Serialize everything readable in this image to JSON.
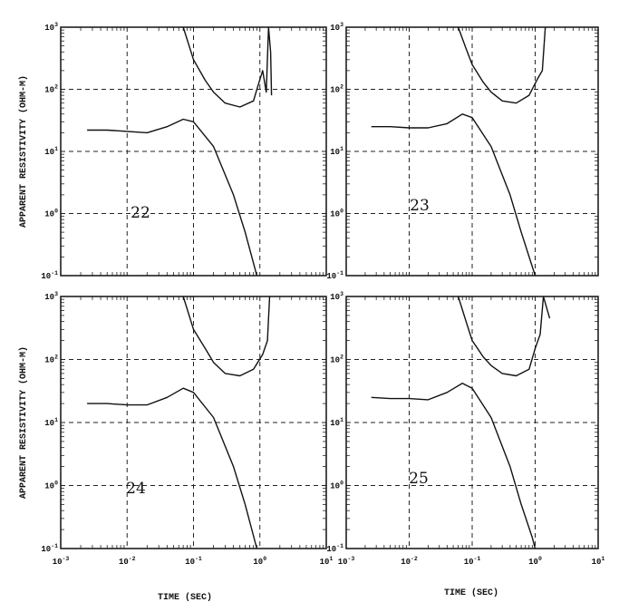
{
  "figure": {
    "ylabel": "APPARENT RESISTIVITY (OHM-M)",
    "xlabel": "TIME (SEC)"
  },
  "chart_data": [
    {
      "type": "line",
      "panel_label": "22",
      "x_scale": "log",
      "y_scale": "log",
      "xlim": [
        0.001,
        10
      ],
      "ylim": [
        0.1,
        1000
      ],
      "x_ticks": [
        {
          "base": "10",
          "exp": "-3"
        },
        {
          "base": "10",
          "exp": "-2"
        },
        {
          "base": "10",
          "exp": "-1"
        },
        {
          "base": "10",
          "exp": "0"
        },
        {
          "base": "10",
          "exp": "1"
        }
      ],
      "y_ticks": [
        {
          "base": "10",
          "exp": "-1"
        },
        {
          "base": "10",
          "exp": "0"
        },
        {
          "base": "10",
          "exp": "1"
        },
        {
          "base": "10",
          "exp": "2"
        },
        {
          "base": "10",
          "exp": "3"
        }
      ],
      "series": [
        {
          "name": "lower curve",
          "x": [
            0.0025,
            0.005,
            0.01,
            0.02,
            0.04,
            0.07,
            0.1,
            0.2,
            0.4,
            0.6,
            0.9
          ],
          "y": [
            22,
            22,
            21,
            20,
            25,
            33,
            30,
            12,
            2,
            0.5,
            0.1
          ]
        },
        {
          "name": "upper curve",
          "x": [
            0.07,
            0.1,
            0.15,
            0.2,
            0.3,
            0.5,
            0.8,
            0.95,
            1.1,
            1.25,
            1.35,
            1.45,
            1.5
          ],
          "y": [
            1000,
            300,
            140,
            90,
            60,
            52,
            65,
            120,
            200,
            90,
            1000,
            400,
            80
          ]
        }
      ]
    },
    {
      "type": "line",
      "panel_label": "23",
      "x_scale": "log",
      "y_scale": "log",
      "xlim": [
        0.001,
        10
      ],
      "ylim": [
        0.1,
        1000
      ],
      "x_ticks": [
        {
          "base": "10",
          "exp": "-3"
        },
        {
          "base": "10",
          "exp": "-2"
        },
        {
          "base": "10",
          "exp": "-1"
        },
        {
          "base": "10",
          "exp": "0"
        },
        {
          "base": "10",
          "exp": "1"
        }
      ],
      "y_ticks": [
        {
          "base": "10",
          "exp": "-1"
        },
        {
          "base": "10",
          "exp": "0"
        },
        {
          "base": "10",
          "exp": "1"
        },
        {
          "base": "10",
          "exp": "2"
        },
        {
          "base": "10",
          "exp": "3"
        }
      ],
      "series": [
        {
          "name": "lower curve",
          "x": [
            0.0025,
            0.005,
            0.01,
            0.02,
            0.04,
            0.07,
            0.1,
            0.2,
            0.4,
            0.6,
            1.0
          ],
          "y": [
            25,
            25,
            24,
            24,
            28,
            40,
            35,
            12,
            2,
            0.5,
            0.1
          ]
        },
        {
          "name": "upper curve",
          "x": [
            0.06,
            0.08,
            0.1,
            0.15,
            0.2,
            0.3,
            0.5,
            0.8,
            1.1,
            1.3,
            1.45
          ],
          "y": [
            1000,
            450,
            250,
            130,
            90,
            65,
            60,
            80,
            150,
            200,
            1000
          ]
        }
      ]
    },
    {
      "type": "line",
      "panel_label": "24",
      "x_scale": "log",
      "y_scale": "log",
      "xlim": [
        0.001,
        10
      ],
      "ylim": [
        0.1,
        1000
      ],
      "x_ticks": [
        {
          "base": "10",
          "exp": "-3"
        },
        {
          "base": "10",
          "exp": "-2"
        },
        {
          "base": "10",
          "exp": "-1"
        },
        {
          "base": "10",
          "exp": "0"
        },
        {
          "base": "10",
          "exp": "1"
        }
      ],
      "y_ticks": [
        {
          "base": "10",
          "exp": "-1"
        },
        {
          "base": "10",
          "exp": "0"
        },
        {
          "base": "10",
          "exp": "1"
        },
        {
          "base": "10",
          "exp": "2"
        },
        {
          "base": "10",
          "exp": "3"
        }
      ],
      "series": [
        {
          "name": "lower curve",
          "x": [
            0.0025,
            0.005,
            0.01,
            0.02,
            0.04,
            0.07,
            0.1,
            0.2,
            0.4,
            0.6,
            0.9
          ],
          "y": [
            20,
            20,
            19,
            19,
            25,
            35,
            30,
            12,
            2,
            0.5,
            0.1
          ]
        },
        {
          "name": "upper curve",
          "x": [
            0.07,
            0.1,
            0.15,
            0.2,
            0.3,
            0.5,
            0.8,
            1.1,
            1.3,
            1.4
          ],
          "y": [
            1000,
            300,
            150,
            90,
            60,
            55,
            70,
            120,
            200,
            1000
          ]
        }
      ]
    },
    {
      "type": "line",
      "panel_label": "25",
      "x_scale": "log",
      "y_scale": "log",
      "xlim": [
        0.001,
        10
      ],
      "ylim": [
        0.1,
        1000
      ],
      "x_ticks": [
        {
          "base": "10",
          "exp": "-3"
        },
        {
          "base": "10",
          "exp": "-2"
        },
        {
          "base": "10",
          "exp": "-1"
        },
        {
          "base": "10",
          "exp": "0"
        },
        {
          "base": "10",
          "exp": "1"
        }
      ],
      "y_ticks": [
        {
          "base": "10",
          "exp": "-1"
        },
        {
          "base": "10",
          "exp": "0"
        },
        {
          "base": "10",
          "exp": "1"
        },
        {
          "base": "10",
          "exp": "2"
        },
        {
          "base": "10",
          "exp": "3"
        }
      ],
      "series": [
        {
          "name": "lower curve",
          "x": [
            0.0025,
            0.005,
            0.01,
            0.02,
            0.04,
            0.07,
            0.1,
            0.2,
            0.4,
            0.6,
            0.9,
            1.0
          ],
          "y": [
            25,
            24,
            24,
            23,
            30,
            42,
            35,
            12,
            2,
            0.5,
            0.15,
            0.1
          ]
        },
        {
          "name": "upper curve",
          "x": [
            0.06,
            0.08,
            0.1,
            0.15,
            0.2,
            0.3,
            0.5,
            0.8,
            1.0,
            1.2,
            1.35,
            1.5,
            1.7
          ],
          "y": [
            1000,
            400,
            200,
            110,
            80,
            60,
            55,
            70,
            150,
            250,
            1000,
            700,
            450
          ]
        }
      ]
    }
  ]
}
